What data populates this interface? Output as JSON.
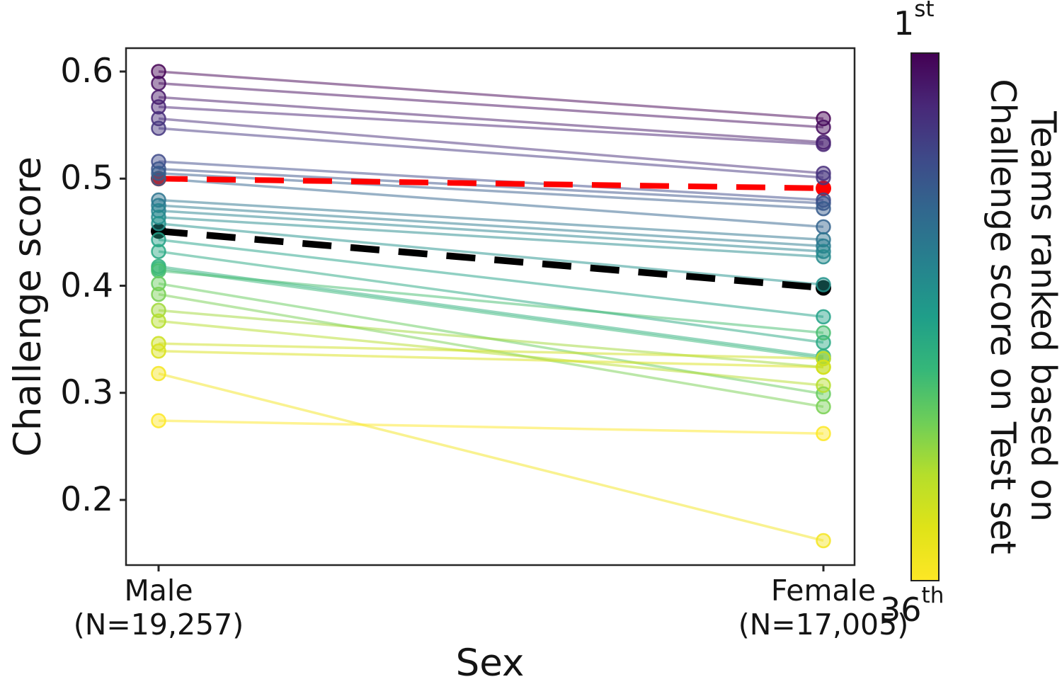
{
  "figure": {
    "background": "#ffffff"
  },
  "y_axis": {
    "label": "Challenge score",
    "ticks": [
      {
        "label": "0.6",
        "value": 0.6
      },
      {
        "label": "0.5",
        "value": 0.5
      },
      {
        "label": "0.4",
        "value": 0.4
      },
      {
        "label": "0.3",
        "value": 0.3
      },
      {
        "label": "0.2",
        "value": 0.2
      }
    ]
  },
  "x_axis": {
    "label": "Sex",
    "categories": [
      {
        "name": "Male",
        "n_label": "(N=19,257)"
      },
      {
        "name": "Female",
        "n_label": "(N=17,005)"
      }
    ]
  },
  "colorbar": {
    "colormap": "viridis",
    "top_rank": {
      "number": "1",
      "suffix": "st"
    },
    "bottom_rank": {
      "number": "36",
      "suffix": "th"
    },
    "title_line1": "Teams ranked based on",
    "title_line2": "Challenge score on Test set",
    "gradient_stops": [
      "#440154",
      "#482878",
      "#3e4a89",
      "#31688e",
      "#26828e",
      "#1f9e89",
      "#35b779",
      "#6ece58",
      "#b5de2b",
      "#dfe318",
      "#fde725"
    ]
  },
  "chart_data": {
    "type": "line",
    "subtype": "slopegraph",
    "categories": [
      "Male",
      "Female"
    ],
    "x_category_counts": [
      19257,
      17005
    ],
    "ylabel": "Challenge score",
    "xlabel": "Sex",
    "yticks": [
      0.6,
      0.5,
      0.4,
      0.3,
      0.2
    ],
    "ylim": [
      0.138,
      0.62
    ],
    "grid": false,
    "marker": "circle",
    "series": [
      {
        "rank": 1,
        "male": 0.6,
        "female": 0.556,
        "color": "#440154"
      },
      {
        "rank": 2,
        "male": 0.589,
        "female": 0.548,
        "color": "#450c5e"
      },
      {
        "rank": 3,
        "male": 0.576,
        "female": 0.534,
        "color": "#461768"
      },
      {
        "rank": 4,
        "male": 0.567,
        "female": 0.532,
        "color": "#472273"
      },
      {
        "rank": 5,
        "male": 0.556,
        "female": 0.505,
        "color": "#472d7a"
      },
      {
        "rank": 6,
        "male": 0.547,
        "female": 0.501,
        "color": "#44367f"
      },
      {
        "rank": 8,
        "male": 0.516,
        "female": 0.48,
        "color": "#3e4a89"
      },
      {
        "rank": 9,
        "male": 0.509,
        "female": 0.477,
        "color": "#3a528a"
      },
      {
        "rank": 10,
        "male": 0.505,
        "female": 0.472,
        "color": "#365b8c"
      },
      {
        "rank": 11,
        "male": 0.5,
        "female": 0.455,
        "color": "#32638d"
      },
      {
        "rank": 13,
        "male": 0.48,
        "female": 0.443,
        "color": "#2c738e"
      },
      {
        "rank": 14,
        "male": 0.475,
        "female": 0.437,
        "color": "#297a8e"
      },
      {
        "rank": 15,
        "male": 0.47,
        "female": 0.432,
        "color": "#26828e"
      },
      {
        "rank": 16,
        "male": 0.464,
        "female": 0.427,
        "color": "#248a8c"
      },
      {
        "rank": 17,
        "male": 0.458,
        "female": 0.401,
        "color": "#22928b"
      },
      {
        "rank": 19,
        "male": 0.443,
        "female": 0.371,
        "color": "#22a187"
      },
      {
        "rank": 20,
        "male": 0.432,
        "female": 0.347,
        "color": "#28a882"
      },
      {
        "rank": 21,
        "male": 0.418,
        "female": 0.334,
        "color": "#2eaf7d"
      },
      {
        "rank": 22,
        "male": 0.416,
        "female": 0.332,
        "color": "#35b779"
      },
      {
        "rank": 23,
        "male": 0.414,
        "female": 0.356,
        "color": "#45bd6f"
      },
      {
        "rank": 25,
        "male": 0.402,
        "female": 0.299,
        "color": "#65cb5c"
      },
      {
        "rank": 26,
        "male": 0.392,
        "female": 0.287,
        "color": "#78d051"
      },
      {
        "rank": 28,
        "male": 0.377,
        "female": 0.324,
        "color": "#a0d837"
      },
      {
        "rank": 29,
        "male": 0.367,
        "female": 0.307,
        "color": "#b5de2b"
      },
      {
        "rank": 31,
        "male": 0.346,
        "female": 0.332,
        "color": "#cde020"
      },
      {
        "rank": 32,
        "male": 0.339,
        "female": 0.324,
        "color": "#d9e21a"
      },
      {
        "rank": 35,
        "male": 0.318,
        "female": 0.162,
        "color": "#f4e521"
      },
      {
        "rank": 36,
        "male": 0.274,
        "female": 0.262,
        "color": "#fde725"
      }
    ],
    "mean_lines": [
      {
        "name": "black-dashed-summary",
        "style": "dashed",
        "color": "#000000",
        "male": 0.451,
        "female": 0.398
      },
      {
        "name": "red-dashed-summary",
        "style": "dashed",
        "color": "#ff0000",
        "male": 0.5,
        "female": 0.491
      }
    ]
  }
}
